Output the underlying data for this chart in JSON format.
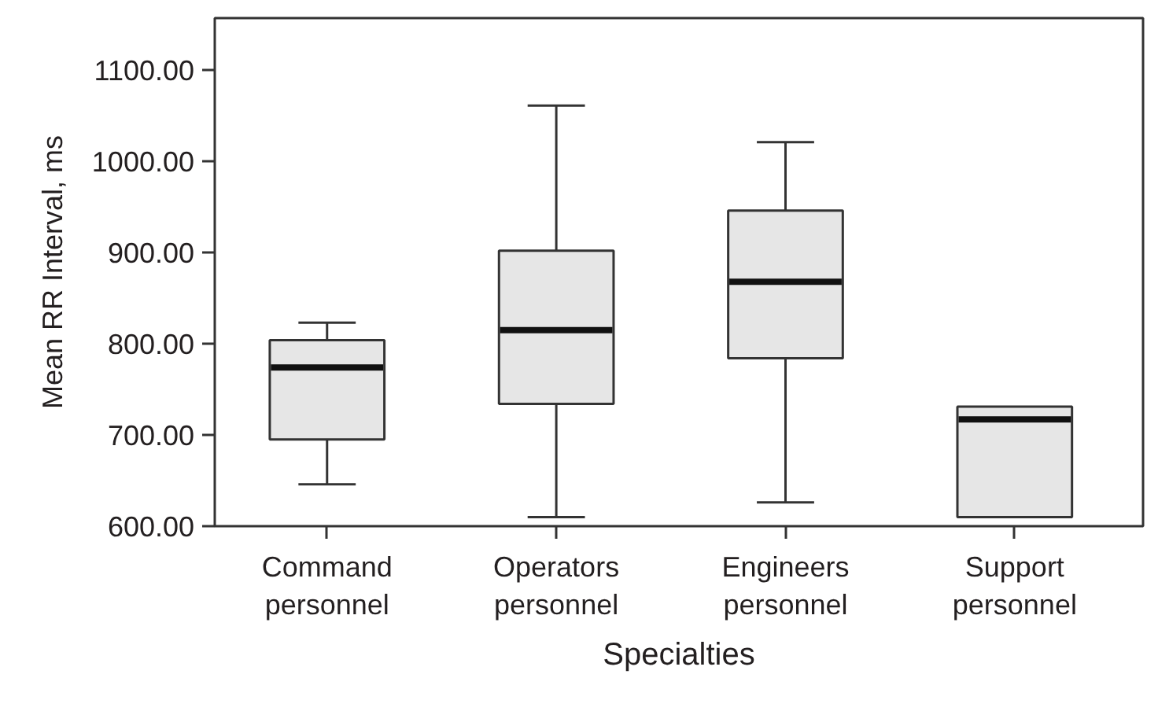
{
  "chart_data": {
    "type": "box",
    "xlabel": "Specialties",
    "ylabel": "Mean RR Interval, ms",
    "categories": [
      "Command personnel",
      "Operators personnel",
      "Engineers personnel",
      "Support personnel"
    ],
    "color": "#e6e6e6",
    "boxes": [
      {
        "low": 646,
        "q1": 695,
        "median": 774,
        "q3": 804,
        "high": 823
      },
      {
        "low": 610,
        "q1": 734,
        "median": 815,
        "q3": 902,
        "high": 1061
      },
      {
        "low": 626,
        "q1": 784,
        "median": 868,
        "q3": 946,
        "high": 1021
      },
      {
        "low": 610,
        "q1": 610,
        "median": 717,
        "q3": 731,
        "high": 731
      }
    ],
    "ylim": [
      600,
      1157
    ],
    "yticks": [
      {
        "value": 600,
        "label": "600.00"
      },
      {
        "value": 700,
        "label": "700.00"
      },
      {
        "value": 800,
        "label": "800.00"
      },
      {
        "value": 900,
        "label": "900.00"
      },
      {
        "value": 1000,
        "label": "1000.00"
      },
      {
        "value": 1100,
        "label": "1100.00"
      }
    ],
    "grid": false
  }
}
